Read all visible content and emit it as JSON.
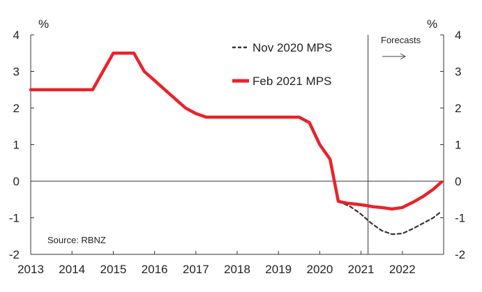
{
  "chart_data": {
    "type": "line",
    "ylabel_left": "%",
    "ylabel_right": "%",
    "xlim": [
      2013,
      2023
    ],
    "ylim": [
      -2,
      4
    ],
    "x_ticks": [
      2013,
      2014,
      2015,
      2016,
      2017,
      2018,
      2019,
      2020,
      2021,
      2022
    ],
    "y_ticks": [
      -2,
      -1,
      0,
      1,
      2,
      3,
      4
    ],
    "forecast_start": 2021.17,
    "forecast_label": "Forecasts",
    "source": "Source: RBNZ",
    "legend_position": "top-right",
    "series": [
      {
        "name": "Nov 2020 MPS",
        "style": "dashed",
        "color": "#333333",
        "x": [
          2020.45,
          2020.75,
          2021.0,
          2021.25,
          2021.5,
          2021.75,
          2022.0,
          2022.25,
          2022.5,
          2022.75,
          2022.95
        ],
        "y": [
          -0.55,
          -0.7,
          -0.9,
          -1.15,
          -1.35,
          -1.45,
          -1.43,
          -1.3,
          -1.15,
          -1.0,
          -0.82
        ]
      },
      {
        "name": "Feb 2021 MPS",
        "style": "solid",
        "color": "#e8232a",
        "x": [
          2013.0,
          2013.25,
          2013.5,
          2013.75,
          2014.0,
          2014.25,
          2014.5,
          2014.75,
          2015.0,
          2015.25,
          2015.5,
          2015.75,
          2016.0,
          2016.25,
          2016.5,
          2016.75,
          2017.0,
          2017.25,
          2017.5,
          2017.75,
          2018.0,
          2018.25,
          2018.5,
          2018.75,
          2019.0,
          2019.25,
          2019.5,
          2019.75,
          2020.0,
          2020.25,
          2020.45,
          2020.65,
          2020.9,
          2021.1,
          2021.3,
          2021.5,
          2021.75,
          2022.0,
          2022.25,
          2022.5,
          2022.75,
          2022.95
        ],
        "y": [
          2.5,
          2.5,
          2.5,
          2.5,
          2.5,
          2.5,
          2.5,
          3.0,
          3.5,
          3.5,
          3.5,
          3.0,
          2.75,
          2.5,
          2.25,
          2.0,
          1.85,
          1.75,
          1.75,
          1.75,
          1.75,
          1.75,
          1.75,
          1.75,
          1.75,
          1.75,
          1.75,
          1.6,
          1.0,
          0.6,
          -0.55,
          -0.6,
          -0.63,
          -0.66,
          -0.7,
          -0.72,
          -0.76,
          -0.72,
          -0.58,
          -0.42,
          -0.22,
          -0.02
        ]
      }
    ]
  }
}
